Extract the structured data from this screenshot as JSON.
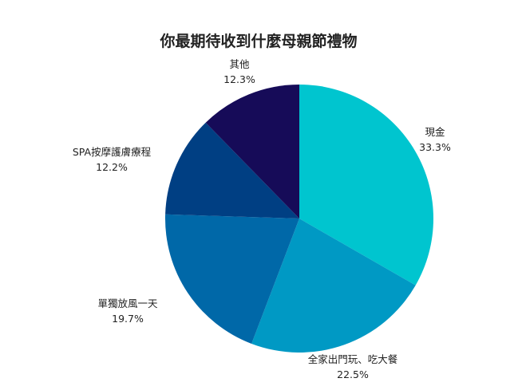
{
  "chart_data": {
    "type": "pie",
    "title": "你最期待收到什麼母親節禮物",
    "start_angle_deg": 0,
    "direction": "clockwise",
    "slices": [
      {
        "label": "現金",
        "value": 33.3,
        "value_label": "33.3%",
        "color": "#00C5CF"
      },
      {
        "label": "全家出門玩、吃大餐",
        "value": 22.5,
        "value_label": "22.5%",
        "color": "#0099C4"
      },
      {
        "label": "單獨放風一天",
        "value": 19.7,
        "value_label": "19.7%",
        "color": "#0068A8"
      },
      {
        "label": "SPA按摩護膚療程",
        "value": 12.2,
        "value_label": "12.2%",
        "color": "#003F83"
      },
      {
        "label": "其他",
        "value": 12.3,
        "value_label": "12.3%",
        "color": "#160B58"
      }
    ]
  }
}
